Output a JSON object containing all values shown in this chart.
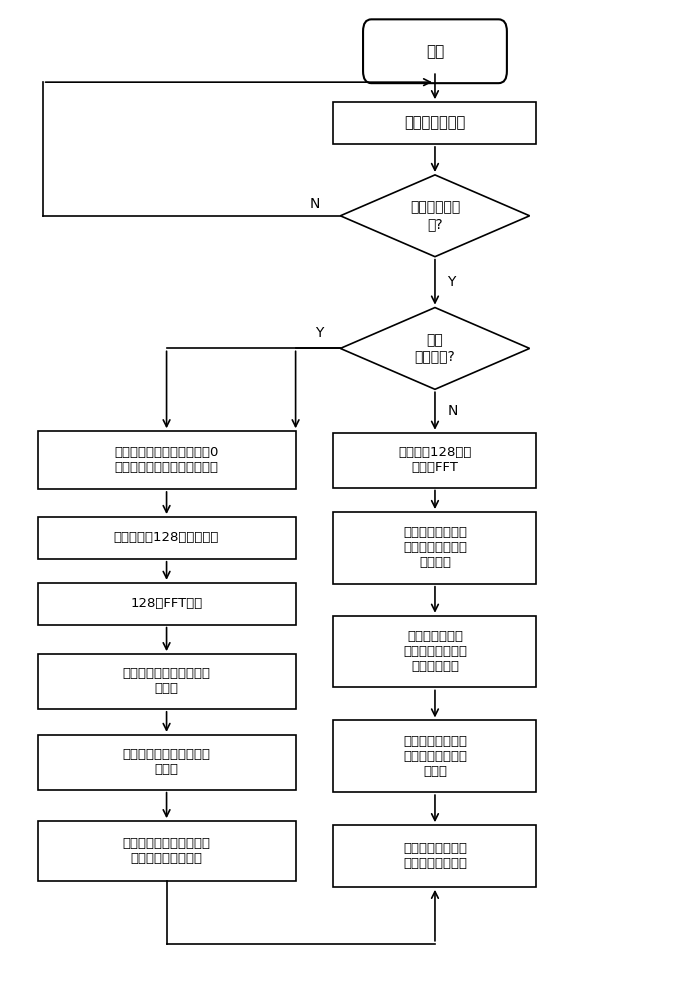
{
  "bg_color": "#ffffff",
  "line_color": "#000000",
  "box_fill": "#ffffff",
  "text_color": "#000000",
  "start_text": "开始",
  "init_text": "初始化系统变量",
  "d1_text": "采样点是否采\n够?",
  "d2_text": "是否\n需要校准?",
  "cal1_text": "使用标准信号源施加相位为0\n幅值为额定的电压、电流信号",
  "cal2_text": "每通道采集128个采样数据",
  "cal3_text": "128点FFT变换",
  "cal4_text": "提取基波模值作为幅值校\n准系数",
  "cal5_text": "取任一通道为基准计算夹\n角向量",
  "cal6_text": "取夹角向量共轭的单位向\n量作为相位校准系数",
  "n1_text": "采样数据128点滑\n动窗口FFT",
  "n2_text": "基波及各次谐波分\n别与相位校准系数\n做向量积",
  "n3_text": "各个向量积的实\n部、虚部分别除以\n幅值校准系数",
  "n4_text": "校正后基波及谐波\n的模值平方求和再\n开平方",
  "n5_text": "根据电压电流类型\n分别乘对应满码值",
  "label_Y": "Y",
  "label_N": "N"
}
